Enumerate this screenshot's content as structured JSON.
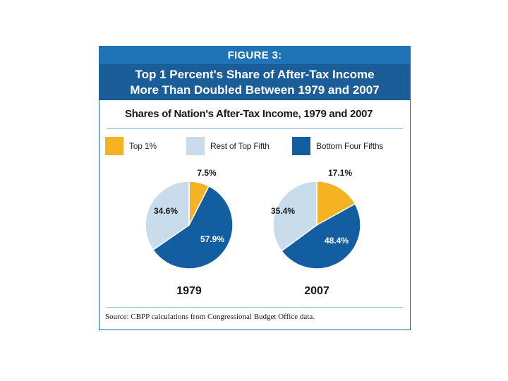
{
  "figure": {
    "label": "FIGURE 3:",
    "headline_line1": "Top 1 Percent's Share of After-Tax Income",
    "headline_line2": "More Than Doubled Between 1979 and 2007",
    "source": "Source: CBPP calculations from Congressional Budget Office data."
  },
  "colors": {
    "top1": "#f5b324",
    "rest_top_fifth": "#c9dcec",
    "bottom_four_fifths": "#135ea0",
    "header_light": "#1f74b8",
    "header_dark": "#1a5d98"
  },
  "chart_data": {
    "type": "pie",
    "title": "Shares of Nation's After-Tax Income, 1979 and 2007",
    "legend": [
      "Top 1%",
      "Rest of Top Fifth",
      "Bottom Four Fifths"
    ],
    "legend_placement": "top",
    "pies": [
      {
        "year": "1979",
        "slices": [
          {
            "name": "Top 1%",
            "value": 7.5,
            "label": "7.5%"
          },
          {
            "name": "Bottom Four Fifths",
            "value": 57.9,
            "label": "57.9%"
          },
          {
            "name": "Rest of Top Fifth",
            "value": 34.6,
            "label": "34.6%"
          }
        ]
      },
      {
        "year": "2007",
        "slices": [
          {
            "name": "Top 1%",
            "value": 17.1,
            "label": "17.1%"
          },
          {
            "name": "Bottom Four Fifths",
            "value": 48.4,
            "label": "48.4%"
          },
          {
            "name": "Rest of Top Fifth",
            "value": 35.4,
            "label": "35.4%"
          }
        ]
      }
    ]
  }
}
